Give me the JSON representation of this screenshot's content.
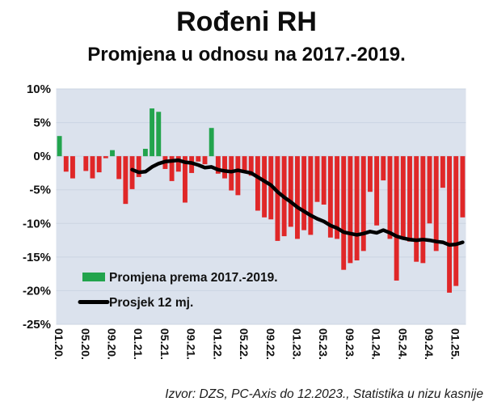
{
  "source_note": "Izvor: DZS, PC-Axis do 12.2023., Statistika u nizu kasnije",
  "colors": {
    "plot_background": "#dbe2ed",
    "gridline": "#cbd4e2",
    "bar_positive": "#22a44d",
    "bar_negative": "#e02728",
    "average_line": "#000000",
    "text": "#111111"
  },
  "chart_data": {
    "type": "bar",
    "title": "Rođeni RH",
    "subtitle": "Promjena u odnosu na 2017.-2019.",
    "xlabel": "",
    "ylabel": "",
    "ylim": [
      -25,
      10
    ],
    "y_tick_step": 5,
    "y_tick_labels": [
      "10%",
      "5%",
      "0%",
      "-5%",
      "-10%",
      "-15%",
      "-20%",
      "-25%"
    ],
    "grid": true,
    "legend_position": "inside-bottom-left",
    "x_months": [
      "01.20.",
      "02.20.",
      "03.20.",
      "04.20.",
      "05.20.",
      "06.20.",
      "07.20.",
      "08.20.",
      "09.20.",
      "10.20.",
      "11.20.",
      "12.20.",
      "01.21.",
      "02.21.",
      "03.21.",
      "04.21.",
      "05.21.",
      "06.21.",
      "07.21.",
      "08.21.",
      "09.21.",
      "10.21.",
      "11.21.",
      "12.21.",
      "01.22.",
      "02.22.",
      "03.22.",
      "04.22.",
      "05.22.",
      "06.22.",
      "07.22.",
      "08.22.",
      "09.22.",
      "10.22.",
      "11.22.",
      "12.22.",
      "01.23.",
      "02.23.",
      "03.23.",
      "04.23.",
      "05.23.",
      "06.23.",
      "07.23.",
      "08.23.",
      "09.23.",
      "10.23.",
      "11.23.",
      "12.23.",
      "01.24.",
      "02.24.",
      "03.24.",
      "04.24.",
      "05.24.",
      "06.24.",
      "07.24.",
      "08.24.",
      "09.24.",
      "10.24.",
      "11.24.",
      "12.24.",
      "01.25.",
      "02.25."
    ],
    "x_tick_labels": [
      "01.20.",
      "05.20.",
      "09.20.",
      "01.21.",
      "05.21.",
      "09.21.",
      "01.22.",
      "05.22.",
      "09.22.",
      "01.23.",
      "05.23.",
      "09.23.",
      "01.24.",
      "05.24.",
      "09.24.",
      "01.25."
    ],
    "x_tick_every": 4,
    "series": [
      {
        "name": "Promjena prema 2017.-2019.",
        "type": "bar",
        "values": [
          3.0,
          -2.3,
          -3.3,
          0.0,
          -2.2,
          -3.3,
          -2.4,
          -0.3,
          0.9,
          -3.4,
          -7.1,
          -4.9,
          -3.1,
          1.1,
          7.1,
          6.6,
          -1.9,
          -3.7,
          -2.3,
          -6.9,
          -2.5,
          -0.8,
          -1.2,
          4.2,
          -2.6,
          -3.3,
          -5.1,
          -5.8,
          -2.4,
          -2.9,
          -8.1,
          -9.1,
          -9.4,
          -12.6,
          -11.9,
          -10.5,
          -12.3,
          -11.0,
          -11.7,
          -6.8,
          -7.2,
          -12.1,
          -12.3,
          -16.9,
          -15.9,
          -15.5,
          -14.1,
          -5.3,
          -10.3,
          -3.6,
          -12.3,
          -18.5,
          -12.3,
          -12.7,
          -15.7,
          -15.9,
          -10.0,
          -14.1,
          -4.7,
          -20.3,
          -19.3,
          -9.1
        ]
      },
      {
        "name": "Prosjek 12 mj.",
        "type": "line",
        "start_index": 11,
        "values": [
          -2.0,
          -2.4,
          -2.3,
          -1.6,
          -1.1,
          -0.8,
          -0.7,
          -0.6,
          -0.9,
          -1.0,
          -1.3,
          -1.7,
          -1.6,
          -2.0,
          -2.2,
          -2.3,
          -2.1,
          -2.3,
          -2.5,
          -3.1,
          -3.7,
          -4.3,
          -5.3,
          -6.1,
          -6.8,
          -7.6,
          -8.2,
          -8.8,
          -9.3,
          -9.7,
          -10.3,
          -10.7,
          -11.3,
          -11.5,
          -11.7,
          -11.5,
          -11.2,
          -11.4,
          -11.0,
          -11.4,
          -11.9,
          -12.2,
          -12.4,
          -12.5,
          -12.4,
          -12.5,
          -12.7,
          -12.8,
          -13.2,
          -13.1,
          -12.8
        ]
      }
    ]
  }
}
